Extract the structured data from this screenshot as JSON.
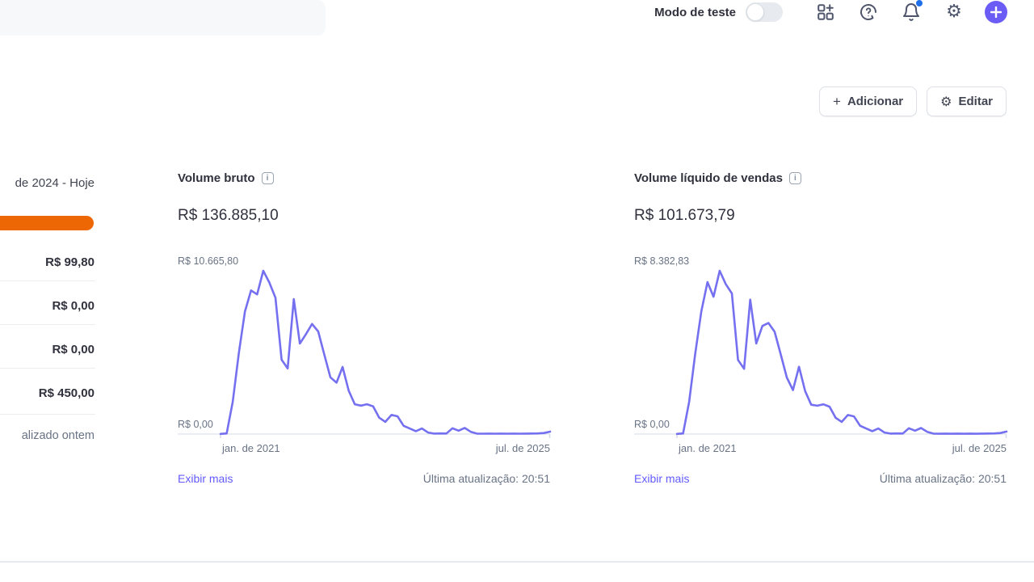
{
  "topbar": {
    "test_mode_label": "Modo de teste",
    "test_mode_on": false
  },
  "actions": {
    "add_label": "Adicionar",
    "edit_label": "Editar"
  },
  "left_panel": {
    "date_range_label": "de 2024 - Hoje",
    "bar_color": "#ed6704",
    "rows": [
      "R$ 99,80",
      "R$ 0,00",
      "R$ 0,00",
      "R$ 450,00"
    ],
    "footnote": "alizado ontem"
  },
  "colors": {
    "accent_purple": "#635bff",
    "chart_line_purple": "#7570f0",
    "orange_bar": "#ed6704",
    "notification_dot": "#1f6feb"
  },
  "chart_data": [
    {
      "type": "line",
      "title": "Volume bruto",
      "total": "R$ 136.885,10",
      "y_max_label": "R$ 10.665,80",
      "y_min_label": "R$ 0,00",
      "x_start_label": "jan. de 2021",
      "x_end_label": "jul. de 2025",
      "ylim": [
        0,
        10665.8
      ],
      "x_unit": "month",
      "x_range": [
        "2021-01",
        "2025-07"
      ],
      "line_color": "#7570f0",
      "values": [
        0,
        30,
        2100,
        5300,
        8000,
        9380,
        9120,
        10665.8,
        9900,
        8900,
        4850,
        4280,
        8815,
        5910,
        6530,
        7190,
        6700,
        5200,
        3700,
        3350,
        4375,
        2825,
        1940,
        1850,
        1940,
        1800,
        1060,
        790,
        1240,
        1150,
        530,
        355,
        180,
        355,
        90,
        20,
        30,
        25,
        370,
        210,
        390,
        140,
        20,
        15,
        20,
        15,
        20,
        15,
        20,
        15,
        20,
        25,
        30,
        60,
        150
      ],
      "footer_link": "Exibir mais",
      "footer_status": "Última atualização: 20:51"
    },
    {
      "type": "line",
      "title": "Volume líquido de vendas",
      "total": "R$ 101.673,79",
      "y_max_label": "R$ 8.382,83",
      "y_min_label": "R$ 0,00",
      "x_start_label": "jan. de 2021",
      "x_end_label": "jul. de 2025",
      "ylim": [
        0,
        8382.83
      ],
      "x_unit": "month",
      "x_range": [
        "2021-01",
        "2025-07"
      ],
      "line_color": "#7570f0",
      "values": [
        0,
        25,
        1650,
        4150,
        6300,
        7800,
        7050,
        8382.83,
        7700,
        7220,
        3800,
        3350,
        6900,
        4650,
        5550,
        5700,
        5250,
        4100,
        2900,
        2250,
        3450,
        2200,
        1500,
        1450,
        1520,
        1400,
        830,
        620,
        970,
        900,
        420,
        280,
        140,
        280,
        70,
        15,
        25,
        20,
        290,
        165,
        305,
        110,
        15,
        10,
        15,
        10,
        15,
        10,
        15,
        10,
        15,
        20,
        25,
        45,
        120
      ],
      "footer_link": "Exibir mais",
      "footer_status": "Última atualização: 20:51"
    }
  ]
}
